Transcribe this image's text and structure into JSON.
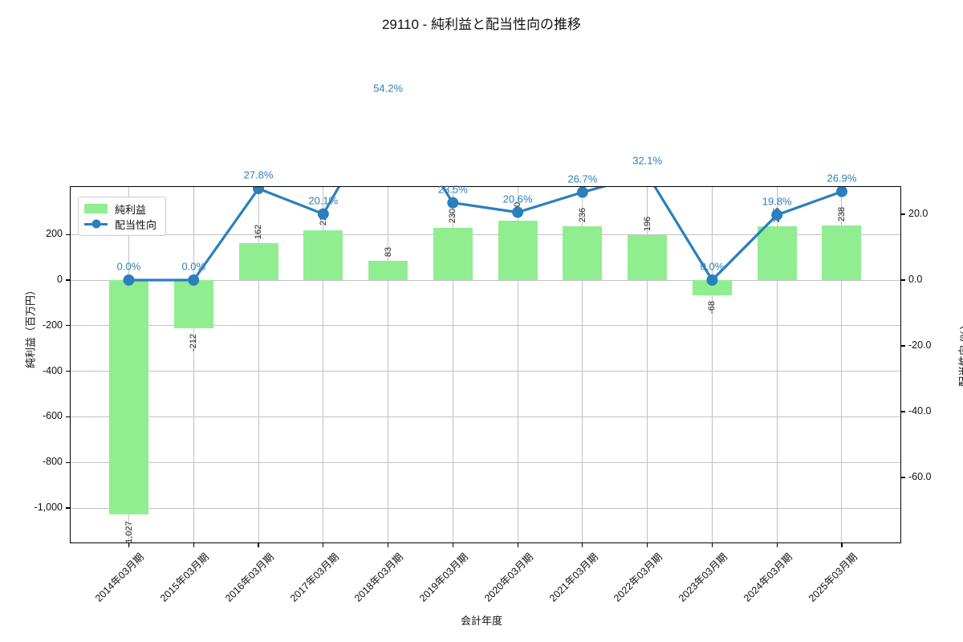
{
  "title": "29110 - 純利益と配当性向の推移",
  "legend": {
    "bar_label": "純利益",
    "line_label": "配当性向"
  },
  "axes": {
    "x_label": "会計年度",
    "y_left_label": "純利益（百万円）",
    "y_right_label": "配当性向 (%)"
  },
  "chart_data": {
    "type": "bar+line",
    "title": "29110 - 純利益と配当性向の推移",
    "xlabel": "会計年度",
    "ylabel_left": "純利益（百万円）",
    "ylabel_right": "配当性向 (%)",
    "grid": true,
    "legend_position": "upper left",
    "categories": [
      "2014年03月期",
      "2015年03月期",
      "2016年03月期",
      "2017年03月期",
      "2018年03月期",
      "2019年03月期",
      "2020年03月期",
      "2021年03月期",
      "2022年03月期",
      "2023年03月期",
      "2024年03月期",
      "2025年03月期"
    ],
    "series": [
      {
        "name": "純利益",
        "type": "bar",
        "axis": "left",
        "unit": "百万円",
        "color": "#90ee90",
        "values": [
          -1027,
          -212,
          162,
          220,
          83,
          230,
          260,
          236,
          196,
          -68,
          235,
          238
        ],
        "labels": [
          "-1,027",
          "-212",
          "162",
          "220",
          "83",
          "230",
          "260",
          "236",
          "196",
          "-68",
          "235",
          "238"
        ]
      },
      {
        "name": "配当性向",
        "type": "line",
        "axis": "right",
        "unit": "%",
        "color": "#2b7fbd",
        "values": [
          0.0,
          0.0,
          27.8,
          20.1,
          54.2,
          23.5,
          20.6,
          26.7,
          32.1,
          0.0,
          19.8,
          26.9
        ],
        "labels": [
          "0.0%",
          "0.0%",
          "27.8%",
          "20.1%",
          "54.2%",
          "23.5%",
          "20.6%",
          "26.7%",
          "32.1%",
          "0.0%",
          "19.8%",
          "26.9%"
        ]
      }
    ],
    "y_left": {
      "tick_labels": [
        "200",
        "0",
        "-200",
        "-400",
        "-600",
        "-800",
        "-1,000"
      ],
      "tick_values": [
        200,
        0,
        -200,
        -400,
        -600,
        -800,
        -1000
      ],
      "lim": [
        -1151,
        408
      ]
    },
    "y_right": {
      "tick_labels": [
        "20.0",
        "0.0",
        "-20.0",
        "-40.0",
        "-60.0"
      ],
      "tick_values": [
        20,
        0,
        -20,
        -40,
        -60
      ],
      "lim": [
        -79.5,
        28.3
      ]
    }
  }
}
